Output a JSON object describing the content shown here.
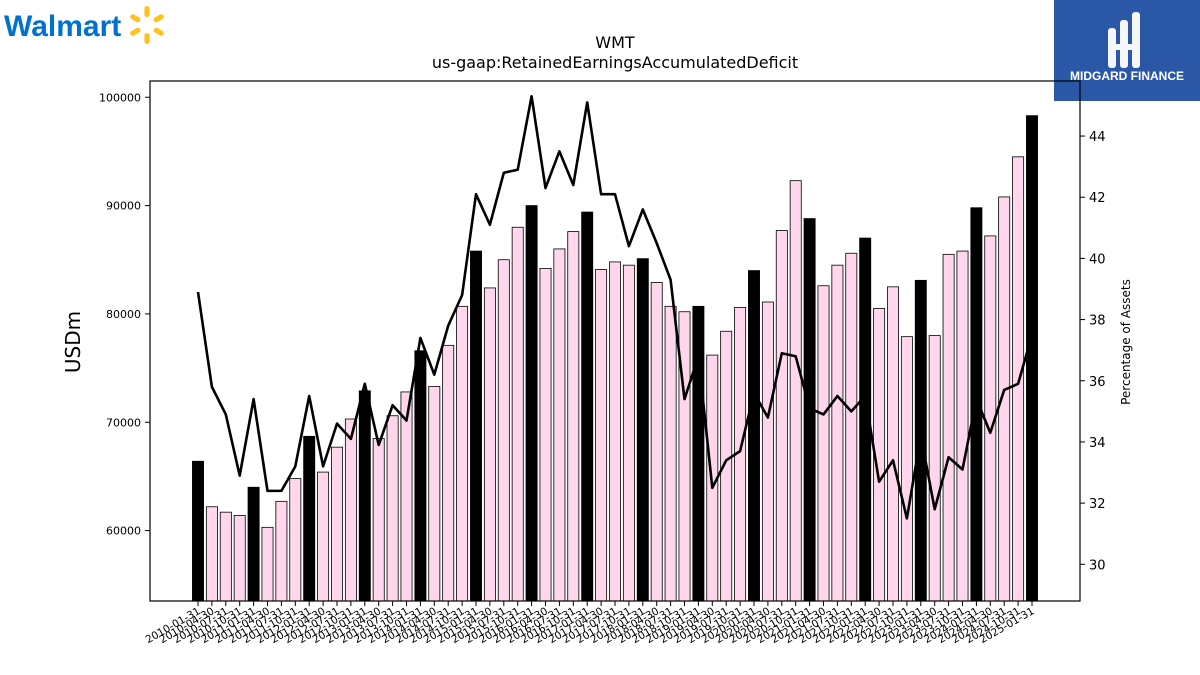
{
  "brand": {
    "left_logo_text": "Walmart",
    "left_logo_color": "#0071ce",
    "left_logo_spark_color": "#ffc220",
    "right_logo_text": "MIDGARD FINANCE",
    "right_logo_bg": "#2b57a7"
  },
  "chart_data": {
    "type": "bar",
    "title": "WMT",
    "subtitle": "us-gaap:RetainedEarningsAccumulatedDeficit",
    "ylabel": "USDm",
    "y2label": "Percentage of Assets",
    "ylim": [
      53500,
      101500
    ],
    "y2lim": [
      28.8,
      45.8
    ],
    "yticks": [
      60000,
      70000,
      80000,
      90000,
      100000
    ],
    "y2ticks": [
      30,
      32,
      34,
      36,
      38,
      40,
      42,
      44
    ],
    "categories": [
      "2010-01-31",
      "2010-04-30",
      "2010-07-31",
      "2010-10-31",
      "2011-01-31",
      "2011-04-30",
      "2011-07-31",
      "2011-10-31",
      "2012-01-31",
      "2012-04-30",
      "2012-07-31",
      "2012-10-31",
      "2013-01-31",
      "2013-04-30",
      "2013-07-31",
      "2013-10-31",
      "2014-01-31",
      "2014-04-30",
      "2014-07-31",
      "2014-10-31",
      "2015-01-31",
      "2015-04-30",
      "2015-07-31",
      "2015-10-31",
      "2016-01-31",
      "2016-04-30",
      "2016-07-31",
      "2016-10-31",
      "2017-01-31",
      "2017-04-30",
      "2017-07-31",
      "2017-10-31",
      "2018-01-31",
      "2018-04-30",
      "2018-07-31",
      "2018-10-31",
      "2019-01-31",
      "2019-04-30",
      "2019-07-31",
      "2019-10-31",
      "2020-01-31",
      "2020-04-30",
      "2020-07-31",
      "2020-10-31",
      "2021-01-31",
      "2021-04-30",
      "2021-07-31",
      "2021-10-31",
      "2022-01-31",
      "2022-04-30",
      "2022-07-31",
      "2022-10-31",
      "2023-01-31",
      "2023-04-30",
      "2023-07-31",
      "2023-10-31",
      "2024-01-31",
      "2024-04-30",
      "2024-07-31",
      "2024-10-31",
      "2025-01-31"
    ],
    "series": [
      {
        "type": "bar",
        "values": [
          66400,
          62200,
          61700,
          61400,
          64000,
          60300,
          62700,
          64800,
          68700,
          65400,
          67700,
          70300,
          72900,
          68500,
          70600,
          72800,
          76600,
          73300,
          77100,
          80700,
          85800,
          82400,
          85000,
          88000,
          90000,
          84200,
          86000,
          87600,
          89400,
          84100,
          84800,
          84500,
          85100,
          82900,
          80700,
          80200,
          80700,
          76200,
          78400,
          80600,
          84000,
          81100,
          87700,
          92300,
          88800,
          82600,
          84500,
          85600,
          87000,
          80500,
          82500,
          77900,
          83100,
          78000,
          85500,
          85800,
          89800,
          87200,
          90800,
          94500,
          98300
        ]
      },
      {
        "type": "line",
        "axis": "right",
        "values": [
          38.9,
          35.8,
          34.9,
          32.9,
          35.4,
          32.4,
          32.4,
          33.2,
          35.5,
          33.2,
          34.6,
          34.1,
          35.9,
          33.9,
          35.2,
          34.7,
          37.4,
          36.2,
          37.8,
          38.8,
          42.1,
          41.1,
          42.8,
          42.9,
          45.3,
          42.3,
          43.5,
          42.4,
          45.1,
          42.1,
          42.1,
          40.4,
          41.6,
          40.5,
          39.3,
          35.4,
          36.8,
          32.5,
          33.4,
          33.7,
          35.6,
          34.8,
          36.9,
          36.8,
          35.1,
          34.9,
          35.5,
          35.0,
          35.5,
          32.7,
          33.4,
          31.5,
          34.2,
          31.8,
          33.5,
          33.1,
          35.4,
          34.3,
          35.7,
          35.9,
          37.5
        ]
      }
    ],
    "highlight_every": 4,
    "colors": {
      "bar_fill": "#ffd6ec",
      "bar_highlight": "#000000",
      "bar_edge": "#000000",
      "line": "#000000"
    },
    "grid": false,
    "legend": "none"
  }
}
